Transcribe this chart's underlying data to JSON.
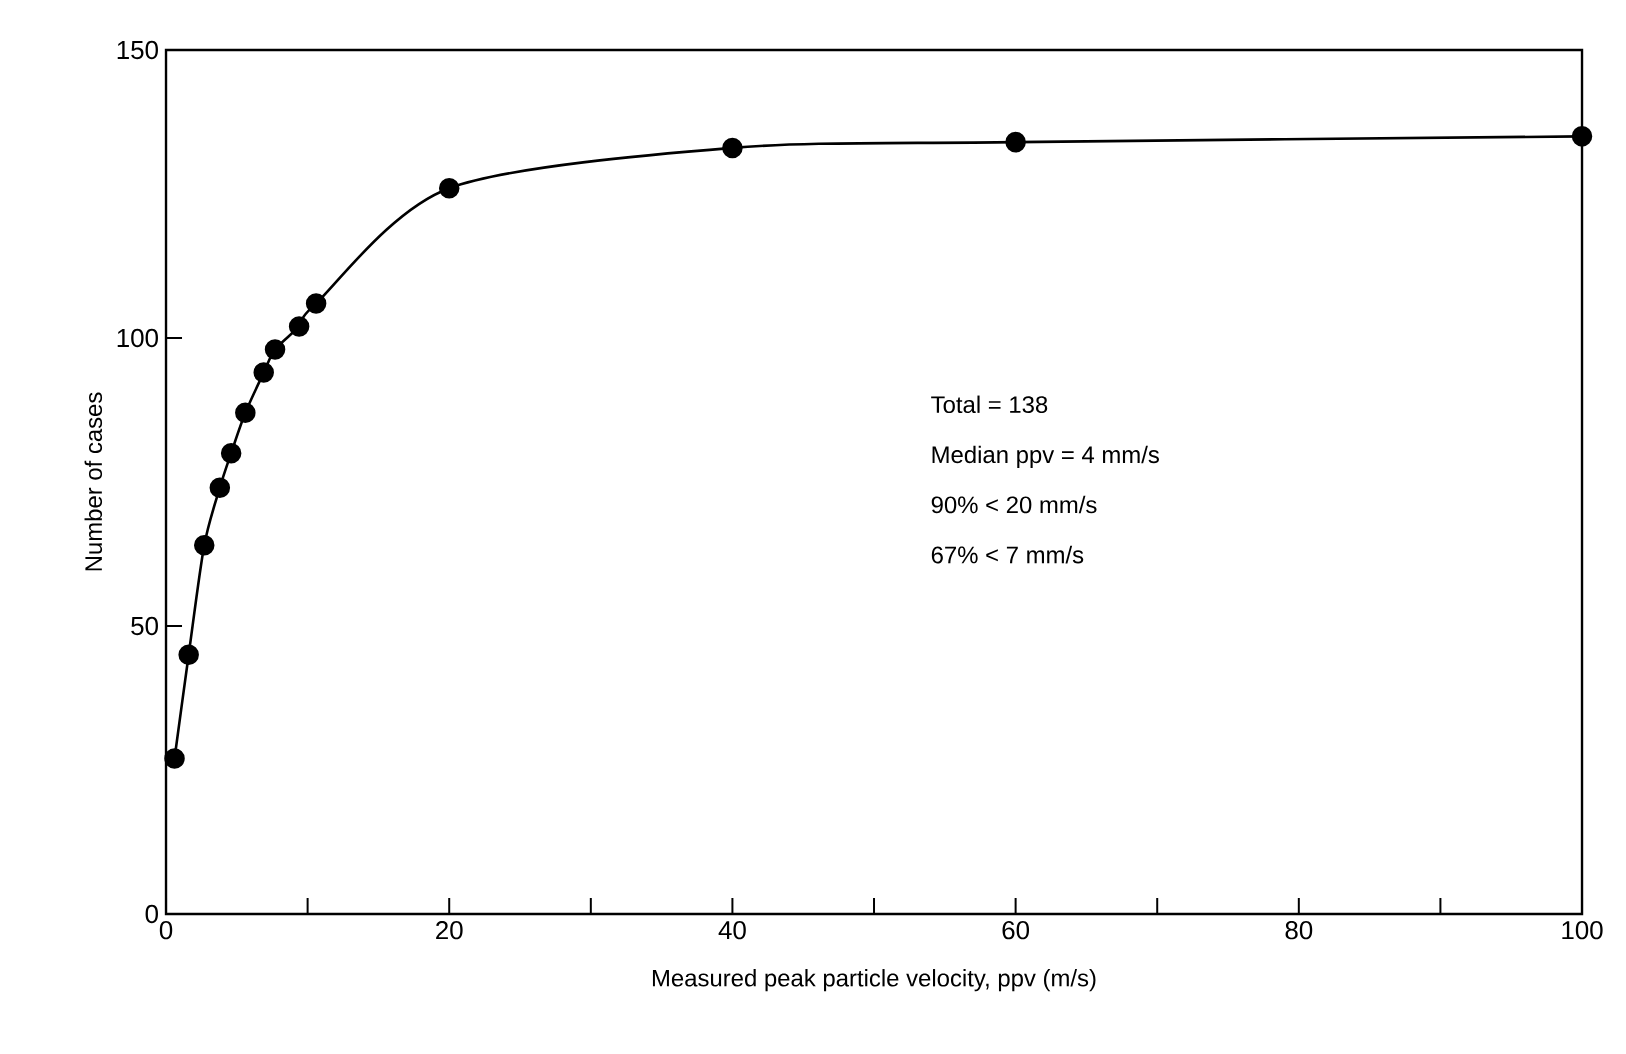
{
  "chart_data": {
    "type": "line",
    "xlabel": "Measured peak particle velocity, ppv (m/s)",
    "ylabel": "Number of cases",
    "x": [
      0.6,
      1.6,
      2.7,
      3.8,
      4.6,
      5.6,
      6.9,
      7.7,
      9.4,
      10.6,
      20,
      40,
      60,
      100
    ],
    "series": [
      {
        "color": "#000000",
        "values": [
          27,
          45,
          64,
          74,
          80,
          87,
          94,
          98,
          102,
          106,
          126,
          133,
          134,
          135
        ]
      }
    ],
    "xlim": [
      0,
      100
    ],
    "ylim": [
      0,
      150
    ],
    "xticks": [
      0,
      {
        "value": 10,
        "label": null
      },
      20,
      {
        "value": 30,
        "label": null
      },
      40,
      {
        "value": 50,
        "label": null
      },
      60,
      {
        "value": 70,
        "label": null
      },
      80,
      {
        "value": 90,
        "label": null
      },
      100
    ],
    "yticks": [
      0,
      50,
      100,
      150
    ],
    "marker": "circle",
    "line_style": "solid",
    "annotations": [
      "Total = 138",
      "Median ppv = 4 mm/s",
      "90% < 20 mm/s",
      "67% < 7 mm/s"
    ]
  }
}
